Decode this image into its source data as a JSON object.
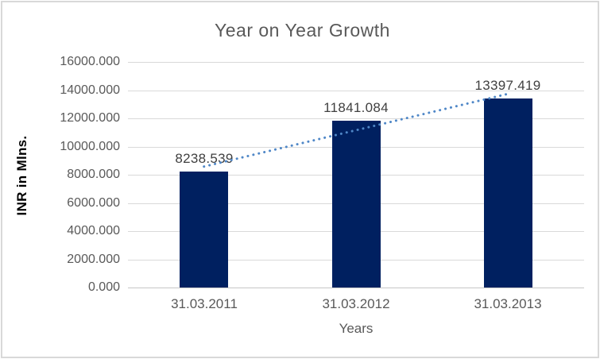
{
  "window": {
    "background": "#ffffff",
    "border_color": "#d8d8d8"
  },
  "chart_data": {
    "type": "bar",
    "title": "Year on Year Growth",
    "xlabel": "Years",
    "ylabel": "INR in Mlns.",
    "categories": [
      "31.03.2011",
      "31.03.2012",
      "31.03.2013"
    ],
    "series": [
      {
        "name": "INR in Mlns.",
        "values": [
          8238.539,
          11841.084,
          13397.419
        ]
      }
    ],
    "data_labels": [
      "8238.539",
      "11841.084",
      "13397.419"
    ],
    "ylim": [
      0,
      16000
    ],
    "ytick_step": 2000,
    "ytick_labels": [
      "0.000",
      "2000.000",
      "4000.000",
      "6000.000",
      "8000.000",
      "10000.000",
      "12000.000",
      "14000.000",
      "16000.000"
    ],
    "grid": true,
    "legend": "none",
    "trendline": {
      "fit": "linear",
      "style": "dotted"
    },
    "colors": {
      "bar": "#002060",
      "trendline": "#4f87c7",
      "gridline": "#d9d9d9",
      "axis_line": "#c6c6c6",
      "title_text": "#595959",
      "tick_text": "#595959",
      "data_label_text": "#404040",
      "axis_title_text": "#000000",
      "background": "#ffffff",
      "border": "#d8d8d8"
    }
  }
}
